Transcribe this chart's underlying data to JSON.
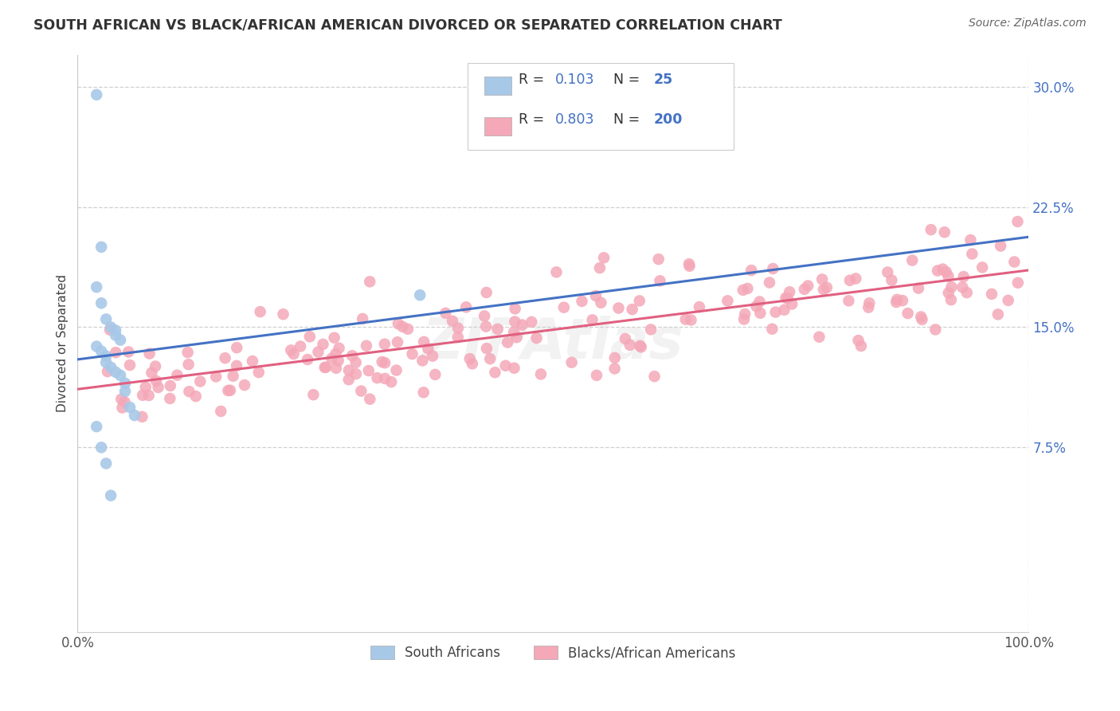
{
  "title": "SOUTH AFRICAN VS BLACK/AFRICAN AMERICAN DIVORCED OR SEPARATED CORRELATION CHART",
  "source": "Source: ZipAtlas.com",
  "ylabel": "Divorced or Separated",
  "legend_label1": "South Africans",
  "legend_label2": "Blacks/African Americans",
  "r1": 0.103,
  "n1": 25,
  "r2": 0.803,
  "n2": 200,
  "color_blue": "#a8c8e8",
  "color_pink": "#f4a8b8",
  "color_blue_line": "#4472c4",
  "color_pink_line": "#e06080",
  "color_text_blue": "#4472c4",
  "color_r_n": "#4472c4",
  "color_label_black": "#404040",
  "background_color": "#ffffff",
  "grid_color": "#d0d0d0",
  "xlim": [
    0.0,
    1.0
  ],
  "ylim": [
    -0.04,
    0.32
  ],
  "yticks": [
    0.075,
    0.15,
    0.225,
    0.3
  ],
  "xticks": [
    0.0,
    1.0
  ],
  "watermark": "ZIPAtlas"
}
